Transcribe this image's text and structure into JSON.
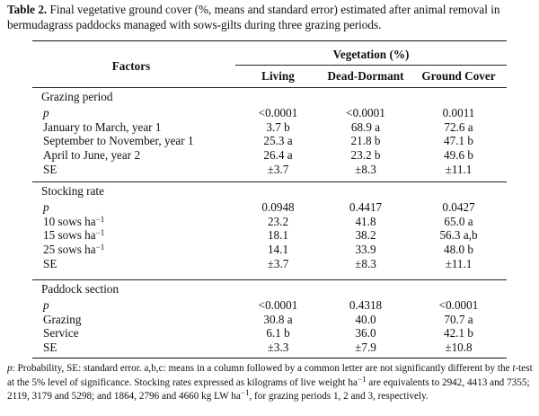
{
  "caption": {
    "label": "Table 2.",
    "text": " Final vegetative ground cover (%, means and standard error) estimated after animal removal in bermudagrass paddocks managed with sows-gilts during three grazing periods."
  },
  "header": {
    "factors": "Factors",
    "group": "Vegetation (%)",
    "col1": "Living",
    "col2": "Dead-Dormant",
    "col3": "Ground Cover"
  },
  "sections": [
    {
      "title": "Grazing period",
      "rows": [
        {
          "label": "p",
          "v1": "<0.0001",
          "v2": "<0.0001",
          "v3": "0.0011"
        },
        {
          "label": "January to March, year 1",
          "v1": "3.7 b",
          "v2": "68.9 a",
          "v3": "72.6 a"
        },
        {
          "label": "September to November, year 1",
          "v1": "25.3 a",
          "v2": "21.8 b",
          "v3": "47.1 b"
        },
        {
          "label": "April to June, year 2",
          "v1": "26.4 a",
          "v2": "23.2 b",
          "v3": "49.6 b"
        },
        {
          "label": "SE",
          "v1": "±3.7",
          "v2": "±8.3",
          "v3": "±11.1"
        }
      ]
    },
    {
      "title": "Stocking rate",
      "rows": [
        {
          "label": "p",
          "v1": "0.0948",
          "v2": "0.4417",
          "v3": "0.0427"
        },
        {
          "label": "10 sows ha",
          "sup": "−1",
          "v1": "23.2",
          "v2": "41.8",
          "v3": "65.0 a"
        },
        {
          "label": "15 sows ha",
          "sup": "−1",
          "v1": "18.1",
          "v2": "38.2",
          "v3": "56.3 a,b"
        },
        {
          "label": "25 sows ha",
          "sup": "−1",
          "v1": "14.1",
          "v2": "33.9",
          "v3": "48.0 b"
        },
        {
          "label": "SE",
          "v1": "±3.7",
          "v2": "±8.3",
          "v3": "±11.1"
        }
      ]
    },
    {
      "title": "Paddock section",
      "rows": [
        {
          "label": "p",
          "v1": "<0.0001",
          "v2": "0.4318",
          "v3": "<0.0001"
        },
        {
          "label": "Grazing",
          "v1": "30.8 a",
          "v2": "40.0",
          "v3": "70.7 a"
        },
        {
          "label": "Service",
          "v1": "6.1 b",
          "v2": "36.0",
          "v3": "42.1 b"
        },
        {
          "label": "SE",
          "v1": "±3.3",
          "v2": "±7.9",
          "v3": "±10.8"
        }
      ]
    }
  ],
  "footnote": {
    "p": "p",
    "part1": ": Probability, SE: standard error. a,b,c: means in a column followed by a common letter are not significantly different by the ",
    "t": "t",
    "part2": "-test at the 5% level of significance. Stocking rates expressed as kilograms of live weight ha",
    "sup1": "−1",
    "part3": " are equivalents to 2942, 4413 and 7355; 2119, 3179 and 5298; and 1864, 2796 and 4660 kg LW ha",
    "sup2": "−1",
    "part4": ", for grazing periods 1, 2 and 3, respectively."
  }
}
